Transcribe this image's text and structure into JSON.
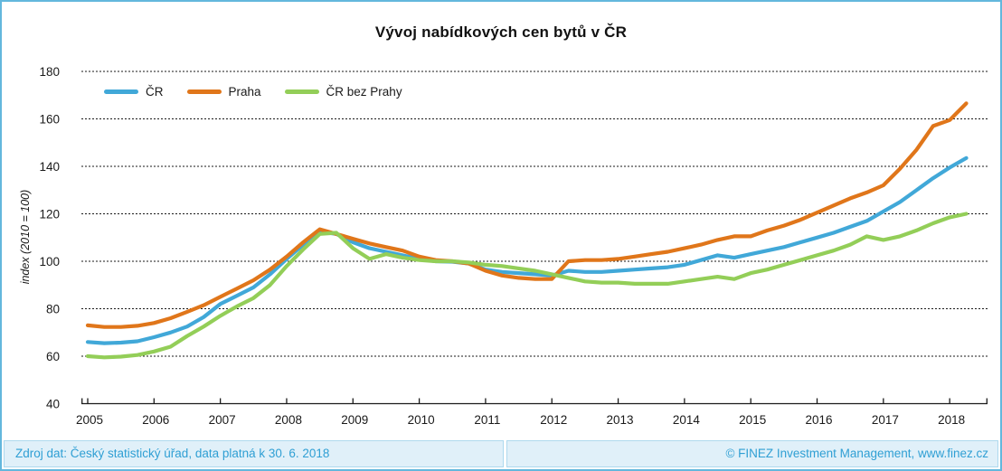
{
  "title": "Vývoj nabídkových cen bytů v ČR",
  "footer": {
    "left": "Zdroj dat: Český statistický úřad, data platná k 30. 6. 2018",
    "right": "© FINEZ Investment Management, www.finez.cz"
  },
  "colors": {
    "cr_line": "#41a8d8",
    "praha_line": "#e0761a",
    "cr_bez_prahy_line": "#93ce58",
    "frame_border": "#63b7dd",
    "footer_bg": "#e0f0f9",
    "footer_text": "#2f9fd4",
    "grid": "#1a1a1a"
  },
  "chart_data": {
    "type": "line",
    "title": "Vývoj nabídkových cen bytů v ČR",
    "xlabel": "",
    "ylabel": "index (2010 = 100)",
    "ylim": [
      40,
      180
    ],
    "y_ticks": [
      40,
      60,
      80,
      100,
      120,
      140,
      160,
      180
    ],
    "x_ticks": [
      2005,
      2006,
      2007,
      2008,
      2009,
      2010,
      2011,
      2012,
      2013,
      2014,
      2015,
      2016,
      2017,
      2018
    ],
    "x_start": 2005.0,
    "x_step_years": 0.25,
    "grid": "dashed-horizontal",
    "legend_position": "top-left",
    "series": [
      {
        "name": "ČR",
        "color": "#41a8d8",
        "values": [
          66,
          65.5,
          65.7,
          66.3,
          68,
          70,
          72.5,
          76.5,
          82,
          85.5,
          89,
          94.5,
          101,
          107,
          112.5,
          111.5,
          108,
          105.5,
          104,
          102.5,
          101,
          100,
          99.8,
          99,
          96.5,
          95.5,
          95,
          94.5,
          94,
          96,
          95.5,
          95.5,
          96,
          96.5,
          97,
          97.5,
          98.5,
          100.5,
          102.5,
          101.5,
          103,
          104.5,
          106,
          108,
          110,
          112,
          114.5,
          117,
          121,
          125,
          130,
          135,
          139.5,
          143.5
        ]
      },
      {
        "name": "Praha",
        "color": "#e0761a",
        "values": [
          73,
          72.3,
          72.3,
          72.8,
          74,
          76,
          78.7,
          81.5,
          85,
          88.5,
          92,
          96.5,
          102,
          108,
          113.5,
          111.5,
          109.5,
          107.5,
          106,
          104.5,
          102,
          100.5,
          100,
          99,
          96,
          94,
          93,
          92.5,
          92.5,
          100,
          100.5,
          100.5,
          101,
          102,
          103,
          104,
          105.5,
          107,
          109,
          110.5,
          110.5,
          113,
          115,
          117.5,
          120.5,
          123.5,
          126.5,
          129,
          132,
          139,
          147,
          157,
          159.5,
          166.5
        ]
      },
      {
        "name": "ČR bez Prahy",
        "color": "#93ce58",
        "values": [
          60,
          59.5,
          59.8,
          60.5,
          62,
          64,
          68.5,
          72.5,
          77,
          81,
          84.5,
          90,
          98,
          105,
          111.5,
          112,
          105.5,
          101,
          103,
          101.5,
          100.5,
          100,
          100,
          99.5,
          98.5,
          98,
          97,
          96,
          94.5,
          93,
          91.5,
          91,
          91,
          90.5,
          90.5,
          90.5,
          91.5,
          92.5,
          93.5,
          92.5,
          95,
          96.5,
          98.5,
          100.5,
          102.5,
          104.5,
          107,
          110.5,
          109,
          110.5,
          113,
          116,
          118.5,
          120
        ]
      }
    ]
  }
}
